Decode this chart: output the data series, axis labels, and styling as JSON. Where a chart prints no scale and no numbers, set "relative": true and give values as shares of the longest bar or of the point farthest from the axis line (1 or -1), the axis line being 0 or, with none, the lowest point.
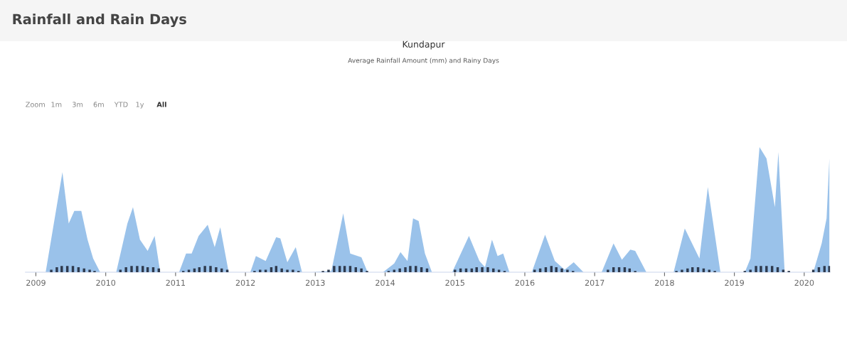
{
  "chart_data": {
    "type": "area",
    "title": "Kundapur",
    "subtitle": "Average Rainfall Amount (mm) and Rainy Days",
    "annotations": [
      "Rainfall and Rain Days",
      "Zoom",
      "1m",
      "3m",
      "6m",
      "YTD",
      "1y",
      "All"
    ],
    "relative": true,
    "xlim": [
      2008.85,
      2020.37
    ],
    "xticks": [
      2009,
      2010,
      2011,
      2012,
      2013,
      2014,
      2015,
      2016,
      2017,
      2018,
      2019,
      2020
    ],
    "grid": false,
    "legend": false,
    "series": [
      {
        "color": "#8fbbe8",
        "x": [
          2009.14,
          2009.38,
          2009.47,
          2009.55,
          2009.65,
          2009.74,
          2009.82,
          2009.92,
          2010.15,
          2010.31,
          2010.39,
          2010.49,
          2010.6,
          2010.7,
          2010.78,
          2011.05,
          2011.15,
          2011.23,
          2011.33,
          2011.46,
          2011.56,
          2011.64,
          2011.76,
          2012.07,
          2012.15,
          2012.29,
          2012.44,
          2012.5,
          2012.6,
          2012.72,
          2012.81,
          2012.95,
          2013.23,
          2013.4,
          2013.5,
          2013.66,
          2013.75,
          2013.97,
          2014.13,
          2014.22,
          2014.32,
          2014.4,
          2014.48,
          2014.57,
          2014.67,
          2014.96,
          2015.2,
          2015.35,
          2015.43,
          2015.53,
          2015.61,
          2015.69,
          2015.78,
          2016.1,
          2016.29,
          2016.43,
          2016.57,
          2016.7,
          2016.84,
          2017.1,
          2017.27,
          2017.39,
          2017.51,
          2017.58,
          2017.74,
          2018.13,
          2018.29,
          2018.5,
          2018.62,
          2018.8,
          2019.15,
          2019.23,
          2019.36,
          2019.46,
          2019.58,
          2019.63,
          2019.72,
          2020.13,
          2020.25,
          2020.32,
          2020.36
        ],
        "values": [
          0,
          0.8,
          0.39,
          0.49,
          0.49,
          0.26,
          0.11,
          0,
          0,
          0.39,
          0.52,
          0.26,
          0.17,
          0.29,
          0,
          0,
          0.15,
          0.15,
          0.29,
          0.38,
          0.2,
          0.36,
          0,
          0,
          0.13,
          0.09,
          0.28,
          0.27,
          0.08,
          0.2,
          0,
          0,
          0.01,
          0.47,
          0.15,
          0.12,
          0,
          0,
          0.07,
          0.16,
          0.09,
          0.43,
          0.41,
          0.15,
          0,
          0,
          0.29,
          0.09,
          0.04,
          0.26,
          0.13,
          0.15,
          0,
          0,
          0.3,
          0.09,
          0.02,
          0.08,
          0,
          0,
          0.23,
          0.1,
          0.18,
          0.17,
          0,
          0,
          0.35,
          0.11,
          0.68,
          0,
          0,
          0.11,
          1,
          0.91,
          0.52,
          0.96,
          0,
          0,
          0.23,
          0.43,
          0.91
        ]
      },
      {
        "type": "bar",
        "color": "#2e3a4e",
        "x": [
          2009.22,
          2009.3,
          2009.37,
          2009.45,
          2009.53,
          2009.61,
          2009.69,
          2009.77,
          2009.84,
          2010.21,
          2010.29,
          2010.37,
          2010.45,
          2010.53,
          2010.6,
          2010.68,
          2010.76,
          2011.11,
          2011.19,
          2011.27,
          2011.34,
          2011.42,
          2011.5,
          2011.58,
          2011.66,
          2011.74,
          2012.13,
          2012.21,
          2012.29,
          2012.37,
          2012.44,
          2012.52,
          2012.6,
          2012.68,
          2012.76,
          2013.11,
          2013.19,
          2013.27,
          2013.35,
          2013.42,
          2013.5,
          2013.58,
          2013.66,
          2013.74,
          2014.05,
          2014.13,
          2014.21,
          2014.29,
          2014.36,
          2014.44,
          2014.52,
          2014.6,
          2015.0,
          2015.08,
          2015.16,
          2015.24,
          2015.31,
          2015.39,
          2015.47,
          2015.55,
          2015.63,
          2015.71,
          2016.14,
          2016.22,
          2016.3,
          2016.38,
          2016.45,
          2016.53,
          2016.61,
          2016.69,
          2017.19,
          2017.27,
          2017.35,
          2017.43,
          2017.5,
          2017.58,
          2018.17,
          2018.25,
          2018.33,
          2018.4,
          2018.48,
          2018.56,
          2018.64,
          2018.72,
          2019.15,
          2019.23,
          2019.31,
          2019.38,
          2019.46,
          2019.54,
          2019.62,
          2019.7,
          2019.78,
          2020.13,
          2020.21,
          2020.29,
          2020.36
        ],
        "values": [
          0.02,
          0.04,
          0.05,
          0.05,
          0.05,
          0.04,
          0.03,
          0.02,
          0.01,
          0.02,
          0.04,
          0.05,
          0.05,
          0.05,
          0.04,
          0.04,
          0.03,
          0.01,
          0.02,
          0.03,
          0.04,
          0.05,
          0.05,
          0.04,
          0.03,
          0.02,
          0.01,
          0.02,
          0.02,
          0.04,
          0.05,
          0.03,
          0.02,
          0.02,
          0.01,
          0.01,
          0.02,
          0.05,
          0.05,
          0.05,
          0.05,
          0.04,
          0.03,
          0.01,
          0.01,
          0.02,
          0.03,
          0.04,
          0.05,
          0.05,
          0.04,
          0.03,
          0.02,
          0.03,
          0.03,
          0.03,
          0.04,
          0.04,
          0.04,
          0.03,
          0.02,
          0.01,
          0.02,
          0.03,
          0.04,
          0.05,
          0.04,
          0.03,
          0.02,
          0.01,
          0.02,
          0.04,
          0.04,
          0.04,
          0.03,
          0.01,
          0.01,
          0.02,
          0.03,
          0.04,
          0.04,
          0.03,
          0.02,
          0.01,
          0.01,
          0.02,
          0.05,
          0.05,
          0.05,
          0.05,
          0.04,
          0.02,
          0.01,
          0.02,
          0.04,
          0.05,
          0.05
        ]
      }
    ]
  }
}
